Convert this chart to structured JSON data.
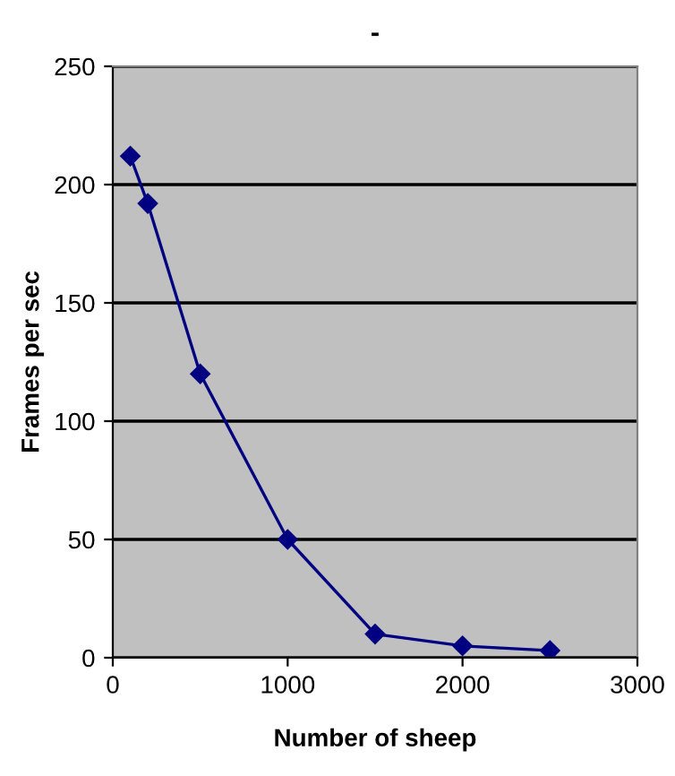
{
  "chart_data": {
    "type": "line",
    "title": "-",
    "xlabel": "Number of sheep",
    "ylabel": "Frames per sec",
    "x": [
      100,
      200,
      500,
      1000,
      1500,
      2000,
      2500
    ],
    "series": [
      {
        "color": "#000080",
        "values": [
          212,
          192,
          120,
          50,
          10,
          5,
          3
        ]
      }
    ],
    "xlim": [
      0,
      3000
    ],
    "xticks": [
      0,
      1000,
      2000,
      3000
    ],
    "ylim": [
      0,
      250
    ],
    "yticks": [
      0,
      50,
      100,
      150,
      200,
      250
    ],
    "grid": "y",
    "marker": "diamond",
    "line_style": "solid",
    "legend": false
  }
}
